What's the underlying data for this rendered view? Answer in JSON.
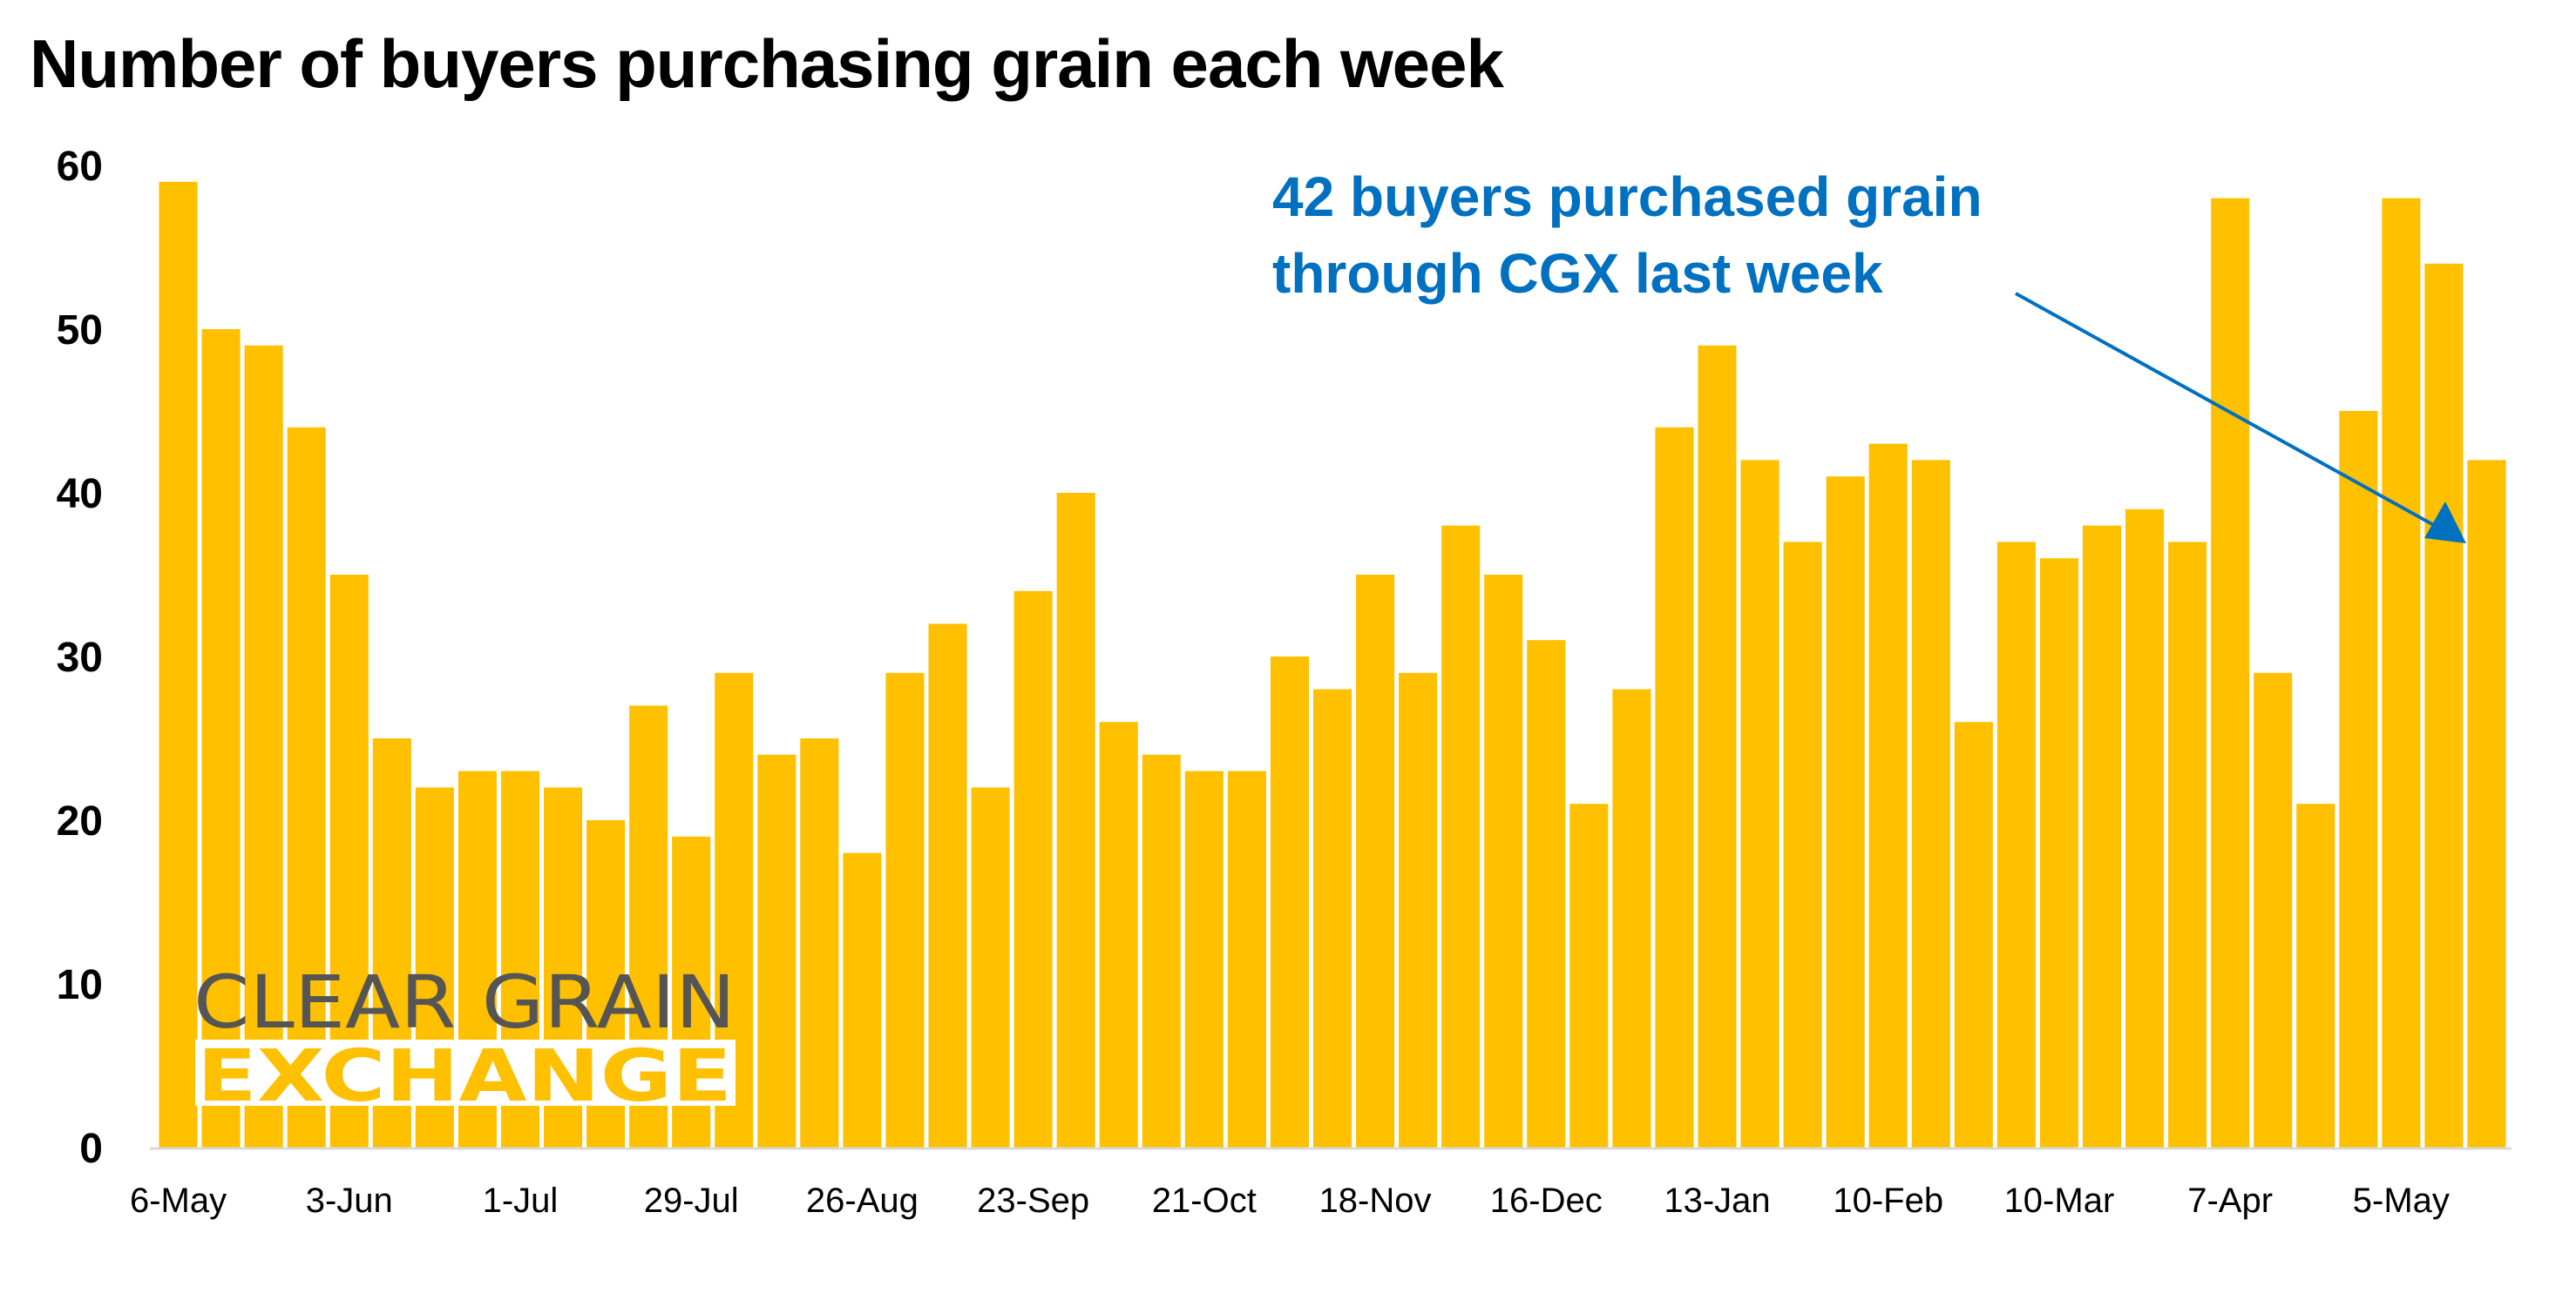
{
  "chart_data": {
    "type": "bar",
    "title": "Number of buyers purchasing grain each week",
    "xlabel": "",
    "ylabel": "",
    "ylim": [
      0,
      60
    ],
    "yticks": [
      "0",
      "10",
      "20",
      "30",
      "40",
      "50",
      "60"
    ],
    "grid": false,
    "legend": "none",
    "bar_color": "#FFC000",
    "tick_labels": [
      "6-May",
      "3-Jun",
      "1-Jul",
      "29-Jul",
      "26-Aug",
      "23-Sep",
      "21-Oct",
      "18-Nov",
      "16-Dec",
      "13-Jan",
      "10-Feb",
      "10-Mar",
      "7-Apr",
      "5-May"
    ],
    "tick_every_n_bars": 4,
    "values": [
      59,
      50,
      49,
      44,
      35,
      25,
      22,
      23,
      23,
      22,
      20,
      27,
      19,
      29,
      24,
      25,
      18,
      29,
      32,
      22,
      34,
      40,
      26,
      24,
      23,
      23,
      30,
      28,
      35,
      29,
      38,
      35,
      31,
      21,
      28,
      44,
      49,
      42,
      37,
      41,
      43,
      42,
      26,
      37,
      36,
      38,
      39,
      37,
      58,
      29,
      21,
      45,
      58,
      54,
      42
    ],
    "annotation": {
      "lines": [
        "42 buyers purchased grain",
        "through CGX last week"
      ],
      "color": "#0070C0",
      "points_to_bar": "last"
    }
  },
  "logo": {
    "line1": "CLEAR GRAIN",
    "line2": "EXCHANGE"
  }
}
